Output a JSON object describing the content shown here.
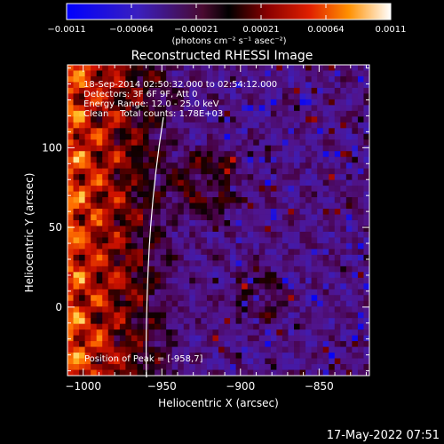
{
  "colorbar": {
    "tick_labels": [
      "-0.0011",
      "-0.00064",
      "-0.00021",
      "0.00021",
      "0.00064",
      "0.0011"
    ],
    "unit_label": "(photons cm⁻² s⁻¹ asec⁻²)"
  },
  "image": {
    "title": "Reconstructed RHESSI Image",
    "info_lines": [
      "18-Sep-2014 02:50:32.000 to 02:54:12.000",
      "Detectors: 3F 6F 9F, Att 0",
      "Energy Range: 12.0 - 25.0 keV",
      "Clean    Total counts: 1.78E+03"
    ],
    "peak_label": "Position of Peak = [-958,7]",
    "x_axis": {
      "label": "Heliocentric X (arcsec)",
      "ticks": [
        -1000,
        -950,
        -900,
        -850
      ],
      "tick_labels": [
        "−1000",
        "−950",
        "−900",
        "−850"
      ],
      "range": [
        -1010,
        -818
      ]
    },
    "y_axis": {
      "label": "Heliocentric Y (arcsec)",
      "ticks": [
        0,
        50,
        100
      ],
      "tick_labels": [
        "0",
        "50",
        "100"
      ],
      "range": [
        -43,
        152
      ]
    },
    "limb_color": "#ffffff"
  },
  "footer": {
    "timestamp": "17-May-2022 07:51"
  }
}
